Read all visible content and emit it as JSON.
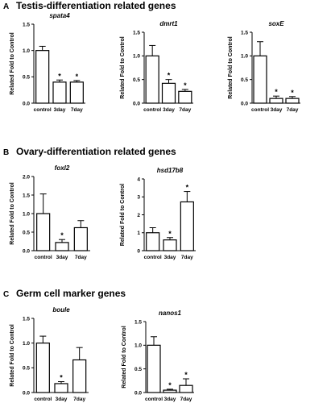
{
  "sections": [
    {
      "letter": "A",
      "title": "Testis-differentiation related genes"
    },
    {
      "letter": "B",
      "title": "Ovary-differentiation related genes"
    },
    {
      "letter": "C",
      "title": "Germ cell marker  genes"
    }
  ],
  "colors": {
    "bar_fill": "#ffffff",
    "bar_stroke": "#000000",
    "text": "#000000"
  },
  "chart_data": [
    {
      "type": "bar",
      "panel": "A",
      "title": "spata4",
      "ylabel": "Related Fold to Control",
      "categories": [
        "control",
        "3day",
        "7day"
      ],
      "values": [
        1.0,
        0.4,
        0.4
      ],
      "errors": [
        0.08,
        0.04,
        0.03
      ],
      "significant": [
        false,
        true,
        true
      ],
      "ylim": [
        0,
        1.5
      ],
      "yticks": [
        "0.0",
        "0.5",
        "1.0",
        "1.5"
      ]
    },
    {
      "type": "bar",
      "panel": "A",
      "title": "dmrt1",
      "ylabel": "Related Fold to Control",
      "categories": [
        "control",
        "3day",
        "7day"
      ],
      "values": [
        1.0,
        0.42,
        0.25
      ],
      "errors": [
        0.22,
        0.08,
        0.04
      ],
      "significant": [
        false,
        true,
        true
      ],
      "ylim": [
        0,
        1.5
      ],
      "yticks": [
        "0.0",
        "0.5",
        "1.0",
        "1.5"
      ]
    },
    {
      "type": "bar",
      "panel": "A",
      "title": "soxE",
      "ylabel": "Related Fold to Control",
      "categories": [
        "control",
        "3day",
        "7day"
      ],
      "values": [
        1.0,
        0.1,
        0.1
      ],
      "errors": [
        0.3,
        0.05,
        0.04
      ],
      "significant": [
        false,
        true,
        true
      ],
      "ylim": [
        0,
        1.5
      ],
      "yticks": [
        "0.0",
        "0.5",
        "1.0",
        "1.5"
      ]
    },
    {
      "type": "bar",
      "panel": "B",
      "title": "foxl2",
      "ylabel": "Related Fold to Control",
      "categories": [
        "control",
        "3day",
        "7day"
      ],
      "values": [
        1.0,
        0.22,
        0.62
      ],
      "errors": [
        0.53,
        0.08,
        0.19
      ],
      "significant": [
        false,
        true,
        false
      ],
      "ylim": [
        0,
        2.0
      ],
      "yticks": [
        "0.0",
        "0.5",
        "1.0",
        "1.5",
        "2.0"
      ]
    },
    {
      "type": "bar",
      "panel": "B",
      "title": "hsd17b8",
      "ylabel": "Related Fold to Control",
      "categories": [
        "control",
        "3day",
        "7day"
      ],
      "values": [
        1.0,
        0.6,
        2.72
      ],
      "errors": [
        0.28,
        0.13,
        0.58
      ],
      "significant": [
        false,
        true,
        true
      ],
      "ylim": [
        0,
        4
      ],
      "yticks": [
        "0",
        "1",
        "2",
        "3",
        "4"
      ]
    },
    {
      "type": "bar",
      "panel": "C",
      "title": "boule",
      "ylabel": "Related Fold to Control",
      "categories": [
        "control",
        "3day",
        "7day"
      ],
      "values": [
        1.0,
        0.18,
        0.66
      ],
      "errors": [
        0.14,
        0.04,
        0.25
      ],
      "significant": [
        false,
        true,
        false
      ],
      "ylim": [
        0,
        1.5
      ],
      "yticks": [
        "0.0",
        "0.5",
        "1.0",
        "1.5"
      ]
    },
    {
      "type": "bar",
      "panel": "C",
      "title": "nanos1",
      "ylabel": "Related Fold to Control",
      "categories": [
        "control",
        "3day",
        "7day"
      ],
      "values": [
        1.0,
        0.05,
        0.15
      ],
      "errors": [
        0.18,
        0.02,
        0.14
      ],
      "significant": [
        false,
        true,
        true
      ],
      "ylim": [
        0,
        1.5
      ],
      "yticks": [
        "0.0",
        "0.5",
        "1.0",
        "1.5"
      ]
    }
  ]
}
